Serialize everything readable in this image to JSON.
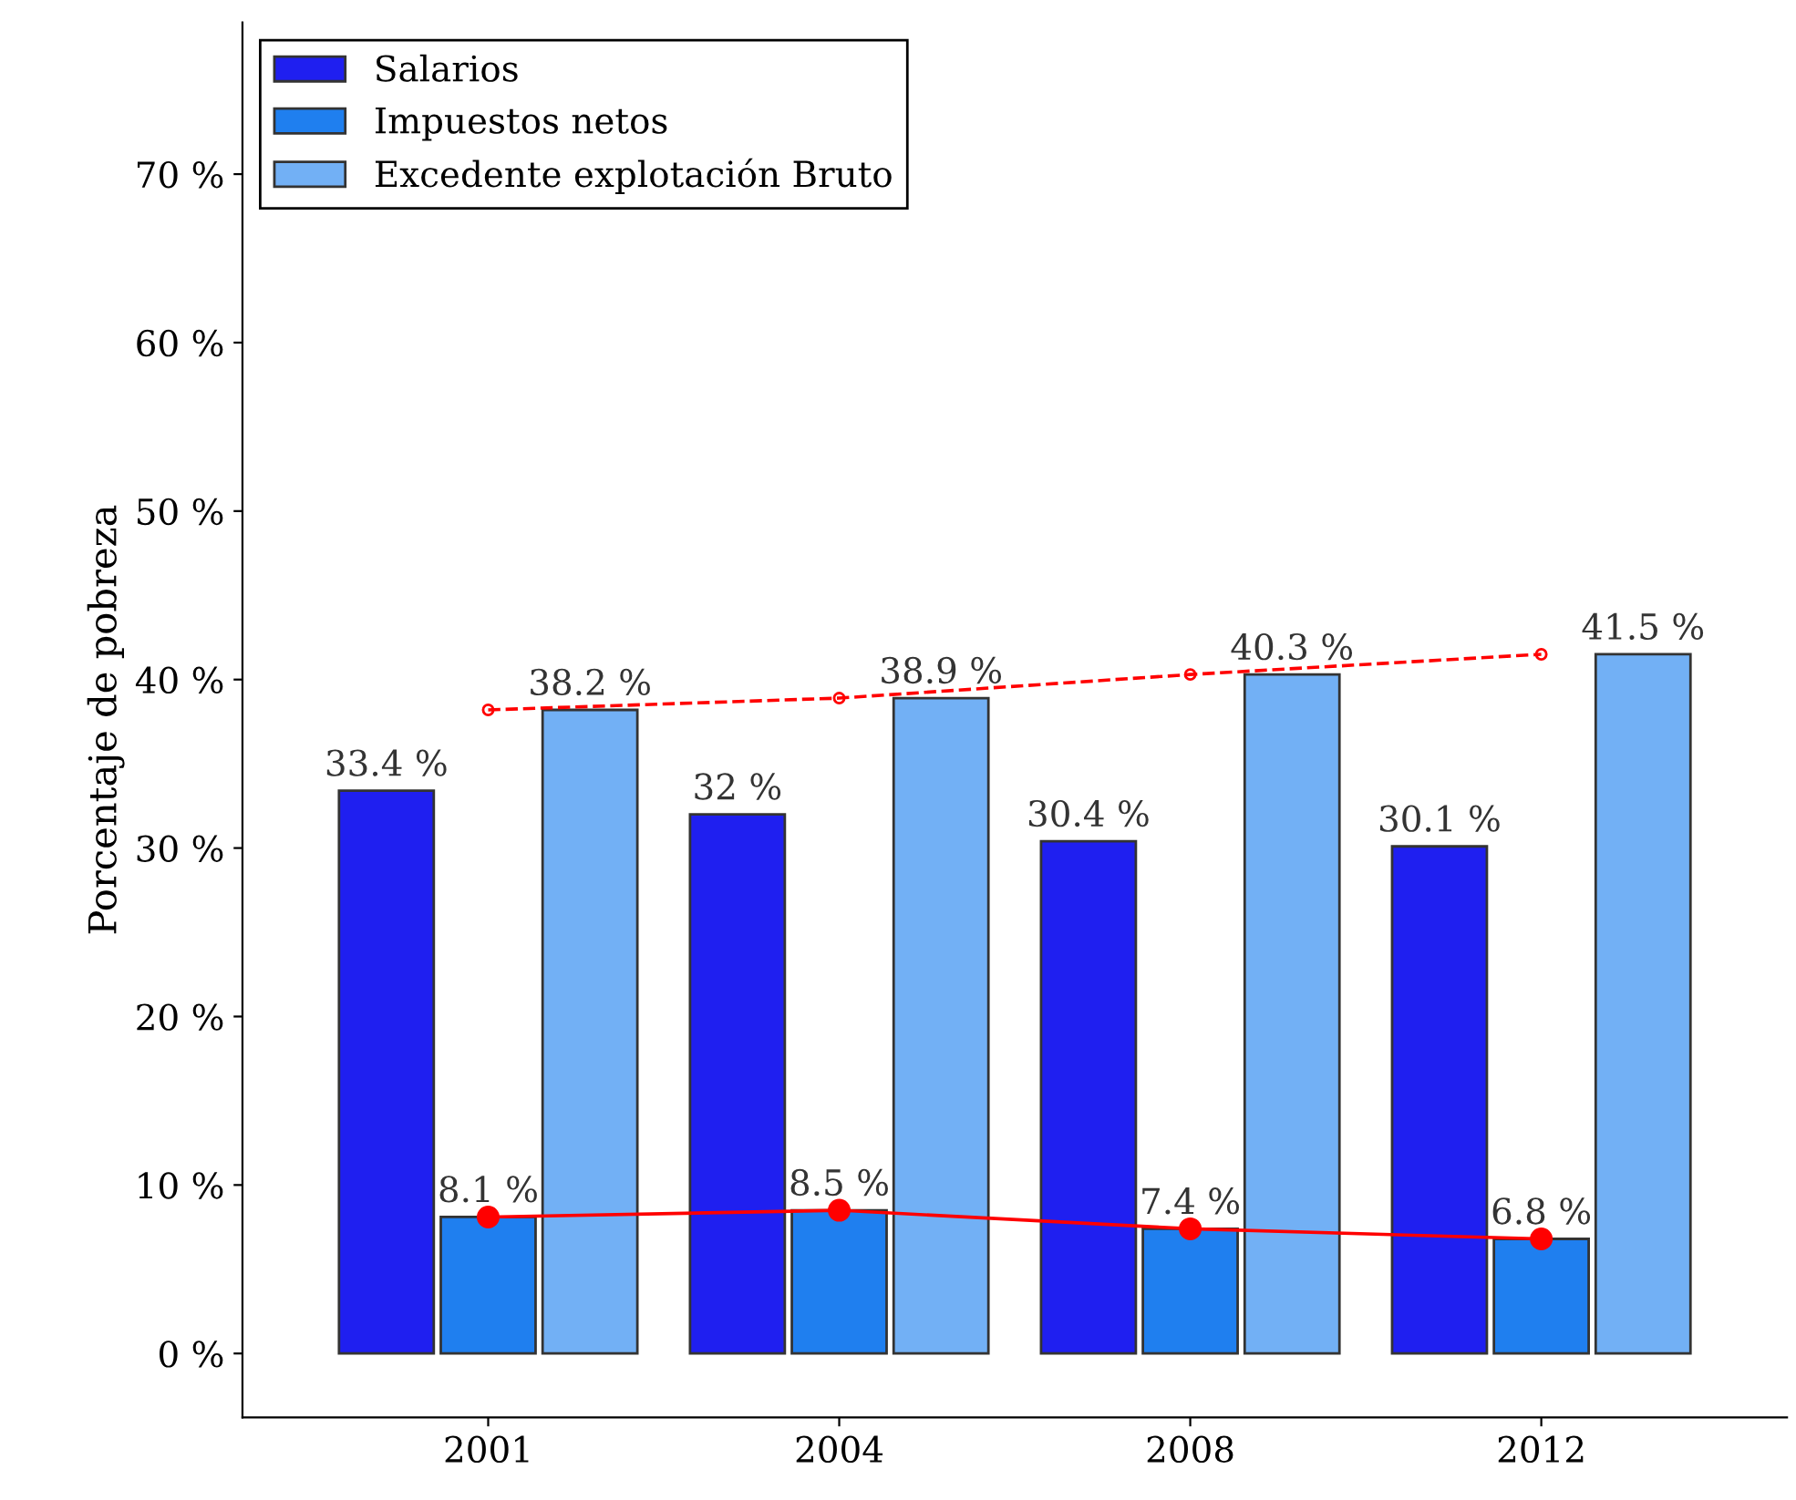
{
  "chart_data": {
    "type": "bar",
    "ylabel": "Porcentaje de pobreza",
    "categories": [
      "2001",
      "2004",
      "2008",
      "2012"
    ],
    "series": [
      {
        "name": "Salarios",
        "color": "#1f1ff0",
        "values": [
          33.4,
          32,
          30.4,
          30.1
        ],
        "value_labels": [
          "33.4 %",
          "32 %",
          "30.4 %",
          "30.1 %"
        ]
      },
      {
        "name": "Impuestos netos",
        "color": "#1f7fef",
        "values": [
          8.1,
          8.5,
          7.4,
          6.8
        ],
        "value_labels": [
          "8.1 %",
          "8.5 %",
          "7.4 %",
          "6.8 %"
        ]
      },
      {
        "name": "Excedente explotación Bruto",
        "color": "#72b0f5",
        "values": [
          38.2,
          38.9,
          40.3,
          41.5
        ],
        "value_labels": [
          "38.2 %",
          "38.9 %",
          "40.3 %",
          "41.5 %"
        ]
      },
      {
        "type": "line",
        "color": "#ff0000",
        "values": [
          8.1,
          8.5,
          7.4,
          6.8
        ],
        "marker": "circle",
        "line_style": "solid"
      },
      {
        "type": "line",
        "color": "#ff0000",
        "values": [
          38.2,
          38.9,
          40.3,
          41.5
        ],
        "marker": "circle",
        "line_style": "dashed"
      }
    ],
    "ylim": [
      -3.8,
      79
    ],
    "yticks": [
      {
        "value": 0,
        "label": "0 %"
      },
      {
        "value": 10,
        "label": "10 %"
      },
      {
        "value": 20,
        "label": "20 %"
      },
      {
        "value": 30,
        "label": "30 %"
      },
      {
        "value": 40,
        "label": "40 %"
      },
      {
        "value": 50,
        "label": "50 %"
      },
      {
        "value": 60,
        "label": "60 %"
      },
      {
        "value": 70,
        "label": "70 %"
      }
    ],
    "grid": false,
    "legend": "top left"
  }
}
